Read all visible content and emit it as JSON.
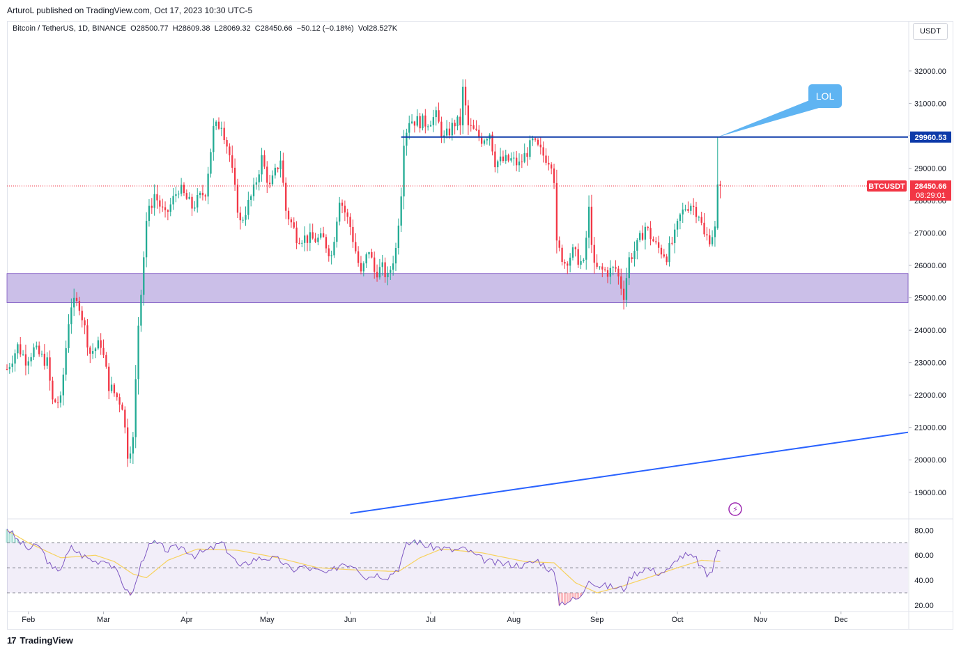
{
  "header": {
    "published_caption": "ArturoL published on TradingView.com, Oct 17, 2023 10:30 UTC-5"
  },
  "legend": {
    "symbol": "Bitcoin / TetherUS, 1D, BINANCE",
    "open": "O28500.77",
    "high": "H28609.38",
    "low": "L28069.32",
    "close": "C28450.66",
    "change": "−50.12 (−0.18%)",
    "volume": "Vol28.527K"
  },
  "currency_button": "USDT",
  "footer": {
    "brand": "TradingView",
    "logo": "17"
  },
  "colors": {
    "up": "#22ab94",
    "down": "#f23645",
    "price_label": "#f23645",
    "resistance_line": "#0d3aa9",
    "trendline": "#2962ff",
    "support_zone": "#c5b8e5",
    "rsi_line": "#7e57c2",
    "rsi_ma": "#f7d25e",
    "callout": "#5fb4f2",
    "grid": "#f0f3fa"
  },
  "chart_data": [
    {
      "type": "candlestick",
      "symbol": "BTCUSDT",
      "interval": "1D",
      "y_axis": {
        "ticks": [
          19000,
          20000,
          21000,
          22000,
          23000,
          24000,
          25000,
          26000,
          27000,
          28000,
          29000,
          30000,
          31000,
          32000
        ],
        "tick_labels": [
          "19000.00",
          "20000.00",
          "21000.00",
          "22000.00",
          "23000.00",
          "24000.00",
          "25000.00",
          "26000.00",
          "27000.00",
          "28000.00",
          "29000.00",
          "30000.00",
          "31000.00",
          "32000.00"
        ],
        "ylim": [
          18200,
          32900
        ]
      },
      "x_axis": {
        "month_labels": [
          "Feb",
          "Mar",
          "Apr",
          "May",
          "Jun",
          "Jul",
          "Aug",
          "Sep",
          "Oct",
          "Nov",
          "Dec"
        ],
        "month_start_dates": [
          "2023-02-01",
          "2023-03-01",
          "2023-04-01",
          "2023-05-01",
          "2023-06-01",
          "2023-07-01",
          "2023-08-01",
          "2023-09-01",
          "2023-10-01",
          "2023-11-01",
          "2023-12-01"
        ],
        "xlim": [
          "2023-01-24",
          "2023-12-26"
        ]
      },
      "price_anchors": [
        [
          "2023-01-24",
          22800
        ],
        [
          "2023-01-28",
          23500
        ],
        [
          "2023-01-31",
          23100
        ],
        [
          "2023-02-03",
          23400
        ],
        [
          "2023-02-08",
          23000
        ],
        [
          "2023-02-10",
          21800
        ],
        [
          "2023-02-13",
          21800
        ],
        [
          "2023-02-16",
          24300
        ],
        [
          "2023-02-17",
          24800
        ],
        [
          "2023-02-20",
          24800
        ],
        [
          "2023-02-24",
          23300
        ],
        [
          "2023-02-28",
          23600
        ],
        [
          "2023-03-03",
          22300
        ],
        [
          "2023-03-08",
          21700
        ],
        [
          "2023-03-10",
          20200
        ],
        [
          "2023-03-12",
          20600
        ],
        [
          "2023-03-14",
          24200
        ],
        [
          "2023-03-17",
          27400
        ],
        [
          "2023-03-20",
          28200
        ],
        [
          "2023-03-24",
          27500
        ],
        [
          "2023-03-29",
          28400
        ],
        [
          "2023-04-03",
          27800
        ],
        [
          "2023-04-08",
          28300
        ],
        [
          "2023-04-11",
          30200
        ],
        [
          "2023-04-14",
          30400
        ],
        [
          "2023-04-17",
          29400
        ],
        [
          "2023-04-19",
          28300
        ],
        [
          "2023-04-21",
          27300
        ],
        [
          "2023-04-26",
          28300
        ],
        [
          "2023-04-29",
          29300
        ],
        [
          "2023-05-02",
          28400
        ],
        [
          "2023-05-06",
          29300
        ],
        [
          "2023-05-08",
          27700
        ],
        [
          "2023-05-12",
          26900
        ],
        [
          "2023-05-18",
          26800
        ],
        [
          "2023-05-22",
          26800
        ],
        [
          "2023-05-25",
          26300
        ],
        [
          "2023-05-28",
          28100
        ],
        [
          "2023-06-01",
          27200
        ],
        [
          "2023-06-05",
          25700
        ],
        [
          "2023-06-08",
          26500
        ],
        [
          "2023-06-10",
          25800
        ],
        [
          "2023-06-13",
          25900
        ],
        [
          "2023-06-15",
          25600
        ],
        [
          "2023-06-18",
          26500
        ],
        [
          "2023-06-20",
          28300
        ],
        [
          "2023-06-21",
          29900
        ],
        [
          "2023-06-23",
          30500
        ],
        [
          "2023-06-29",
          30400
        ],
        [
          "2023-07-03",
          30600
        ],
        [
          "2023-07-06",
          29900
        ],
        [
          "2023-07-10",
          30400
        ],
        [
          "2023-07-12",
          30400
        ],
        [
          "2023-07-13",
          31400
        ],
        [
          "2023-07-15",
          30300
        ],
        [
          "2023-07-20",
          29900
        ],
        [
          "2023-07-23",
          30100
        ],
        [
          "2023-07-25",
          29200
        ],
        [
          "2023-07-31",
          29250
        ],
        [
          "2023-08-03",
          29100
        ],
        [
          "2023-08-08",
          29800
        ],
        [
          "2023-08-12",
          29400
        ],
        [
          "2023-08-15",
          29200
        ],
        [
          "2023-08-16",
          28700
        ],
        [
          "2023-08-17",
          26600
        ],
        [
          "2023-08-20",
          26100
        ],
        [
          "2023-08-23",
          26400
        ],
        [
          "2023-08-27",
          26000
        ],
        [
          "2023-08-29",
          27700
        ],
        [
          "2023-08-31",
          25900
        ],
        [
          "2023-09-05",
          25800
        ],
        [
          "2023-09-08",
          25900
        ],
        [
          "2023-09-11",
          25100
        ],
        [
          "2023-09-13",
          26200
        ],
        [
          "2023-09-16",
          26600
        ],
        [
          "2023-09-19",
          27200
        ],
        [
          "2023-09-23",
          26600
        ],
        [
          "2023-09-27",
          26300
        ],
        [
          "2023-09-30",
          26900
        ],
        [
          "2023-10-02",
          27500
        ],
        [
          "2023-10-04",
          27800
        ],
        [
          "2023-10-06",
          27900
        ],
        [
          "2023-10-09",
          27600
        ],
        [
          "2023-10-11",
          26900
        ],
        [
          "2023-10-13",
          26850
        ],
        [
          "2023-10-15",
          27100
        ],
        [
          "2023-10-16",
          28500
        ],
        [
          "2023-10-17",
          28450.66
        ]
      ],
      "last_candle": {
        "date": "2023-10-17",
        "open": 28500.77,
        "high": 28609.38,
        "low": 28069.32,
        "close": 28450.66
      },
      "support_zone": {
        "low": 24850,
        "high": 25750
      },
      "resistance_line": {
        "price": 29960.53,
        "start": "2023-06-20",
        "label": "29960.53"
      },
      "trendline": {
        "start": [
          "2023-06-01",
          18350
        ],
        "end": [
          "2023-12-26",
          20850
        ]
      },
      "current_price_label": {
        "ticker": "BTCUSDT",
        "price": "28450.66",
        "countdown": "08:29:01",
        "value": 28450.66
      },
      "annotation": {
        "text": "LOL",
        "anchor": [
          "2023-10-16",
          29960.53
        ]
      }
    },
    {
      "type": "line",
      "name": "RSI",
      "ylim": [
        15,
        88
      ],
      "tick_labels": [
        "20.00",
        "40.00",
        "60.00",
        "80.00"
      ],
      "ticks": [
        20,
        40,
        60,
        80
      ],
      "band": {
        "upper": 70,
        "lower": 30,
        "mid": 50
      },
      "rsi_anchors": [
        [
          "2023-01-24",
          82
        ],
        [
          "2023-01-28",
          72
        ],
        [
          "2023-02-01",
          65
        ],
        [
          "2023-02-05",
          68
        ],
        [
          "2023-02-10",
          48
        ],
        [
          "2023-02-13",
          50
        ],
        [
          "2023-02-17",
          66
        ],
        [
          "2023-02-21",
          60
        ],
        [
          "2023-02-26",
          55
        ],
        [
          "2023-03-02",
          57
        ],
        [
          "2023-03-07",
          43
        ],
        [
          "2023-03-10",
          30
        ],
        [
          "2023-03-12",
          30
        ],
        [
          "2023-03-15",
          53
        ],
        [
          "2023-03-17",
          65
        ],
        [
          "2023-03-20",
          70
        ],
        [
          "2023-03-25",
          64
        ],
        [
          "2023-03-30",
          67
        ],
        [
          "2023-04-04",
          60
        ],
        [
          "2023-04-10",
          65
        ],
        [
          "2023-04-14",
          70
        ],
        [
          "2023-04-17",
          62
        ],
        [
          "2023-04-21",
          50
        ],
        [
          "2023-04-26",
          57
        ],
        [
          "2023-05-01",
          58
        ],
        [
          "2023-05-06",
          56
        ],
        [
          "2023-05-10",
          48
        ],
        [
          "2023-05-14",
          51
        ],
        [
          "2023-05-19",
          48
        ],
        [
          "2023-05-24",
          45
        ],
        [
          "2023-05-29",
          54
        ],
        [
          "2023-06-03",
          52
        ],
        [
          "2023-06-07",
          42
        ],
        [
          "2023-06-10",
          45
        ],
        [
          "2023-06-15",
          43
        ],
        [
          "2023-06-19",
          50
        ],
        [
          "2023-06-22",
          68
        ],
        [
          "2023-06-25",
          72
        ],
        [
          "2023-06-30",
          67
        ],
        [
          "2023-07-05",
          66
        ],
        [
          "2023-07-09",
          64
        ],
        [
          "2023-07-14",
          65
        ],
        [
          "2023-07-19",
          58
        ],
        [
          "2023-07-24",
          54
        ],
        [
          "2023-07-30",
          53
        ],
        [
          "2023-08-05",
          52
        ],
        [
          "2023-08-10",
          56
        ],
        [
          "2023-08-16",
          46
        ],
        [
          "2023-08-18",
          22
        ],
        [
          "2023-08-22",
          24
        ],
        [
          "2023-08-26",
          26
        ],
        [
          "2023-08-29",
          42
        ],
        [
          "2023-09-01",
          36
        ],
        [
          "2023-09-06",
          35
        ],
        [
          "2023-09-11",
          33
        ],
        [
          "2023-09-14",
          44
        ],
        [
          "2023-09-19",
          50
        ],
        [
          "2023-09-24",
          46
        ],
        [
          "2023-09-28",
          48
        ],
        [
          "2023-10-01",
          58
        ],
        [
          "2023-10-04",
          60
        ],
        [
          "2023-10-08",
          57
        ],
        [
          "2023-10-12",
          44
        ],
        [
          "2023-10-14",
          48
        ],
        [
          "2023-10-16",
          64
        ],
        [
          "2023-10-17",
          65
        ]
      ],
      "ma_anchors": [
        [
          "2023-01-24",
          80
        ],
        [
          "2023-02-01",
          70
        ],
        [
          "2023-02-13",
          58
        ],
        [
          "2023-02-26",
          60
        ],
        [
          "2023-03-05",
          55
        ],
        [
          "2023-03-12",
          45
        ],
        [
          "2023-03-17",
          42
        ],
        [
          "2023-03-25",
          56
        ],
        [
          "2023-04-05",
          65
        ],
        [
          "2023-04-20",
          64
        ],
        [
          "2023-05-05",
          58
        ],
        [
          "2023-05-20",
          50
        ],
        [
          "2023-06-05",
          48
        ],
        [
          "2023-06-19",
          47
        ],
        [
          "2023-06-27",
          58
        ],
        [
          "2023-07-05",
          65
        ],
        [
          "2023-07-20",
          62
        ],
        [
          "2023-08-05",
          55
        ],
        [
          "2023-08-16",
          54
        ],
        [
          "2023-08-24",
          38
        ],
        [
          "2023-09-01",
          30
        ],
        [
          "2023-09-10",
          35
        ],
        [
          "2023-09-20",
          42
        ],
        [
          "2023-10-01",
          50
        ],
        [
          "2023-10-10",
          56
        ],
        [
          "2023-10-17",
          55
        ]
      ]
    }
  ]
}
